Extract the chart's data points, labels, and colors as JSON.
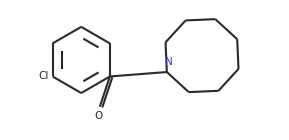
{
  "background_color": "#ffffff",
  "line_color": "#2a2a2a",
  "text_color": "#2a2a2a",
  "cl_color": "#2a2a2a",
  "n_color": "#3a3aaa",
  "o_color": "#2a2a2a",
  "line_width": 1.5,
  "figsize": [
    2.89,
    1.4
  ],
  "dpi": 100,
  "xlim": [
    0.0,
    10.0
  ],
  "ylim": [
    0.5,
    5.2
  ]
}
